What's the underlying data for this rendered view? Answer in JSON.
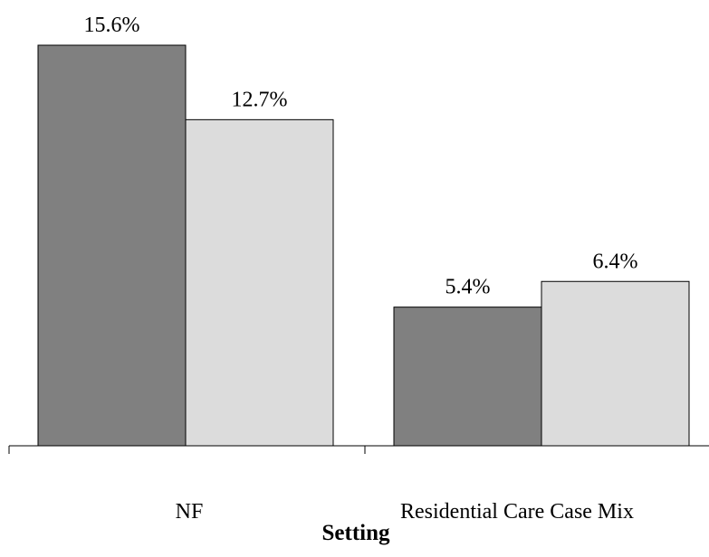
{
  "chart_data": {
    "type": "bar",
    "categories": [
      "NF",
      "Residential Care Case Mix"
    ],
    "series": [
      {
        "values": [
          15.6,
          5.4
        ],
        "labels": [
          "15.6%",
          "5.4%"
        ],
        "color": "#808080"
      },
      {
        "values": [
          12.7,
          6.4
        ],
        "labels": [
          "12.7%",
          "6.4%"
        ],
        "color": "#dcdcdc"
      }
    ],
    "title": "",
    "xlabel": "Setting",
    "ylabel": "",
    "ylim": [
      0,
      17.3
    ],
    "grid": false,
    "legend": "none"
  }
}
